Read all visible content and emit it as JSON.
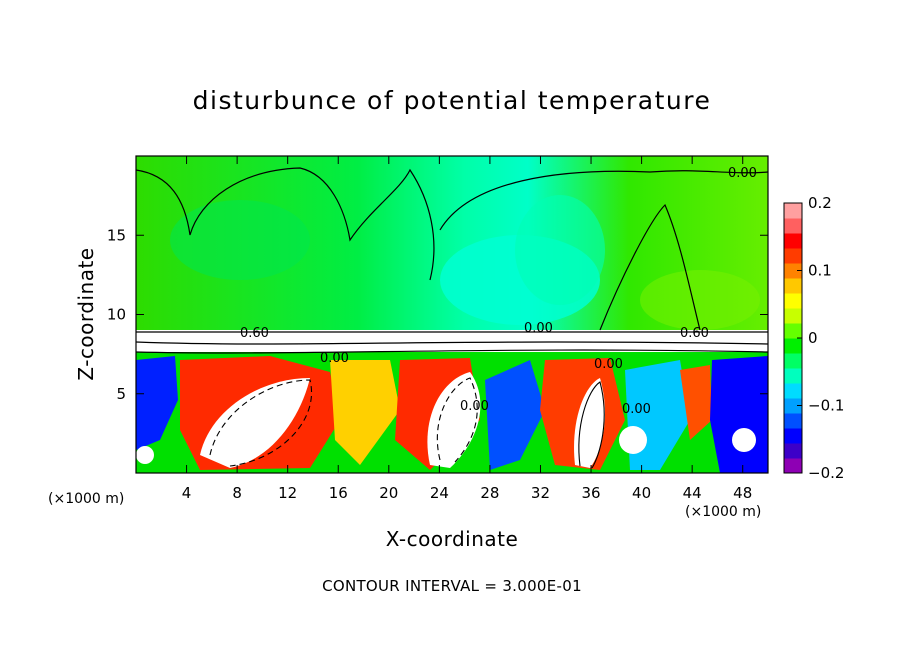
{
  "chart_data": {
    "type": "heatmap",
    "title": "disturbunce of potential temperature",
    "xlabel": "X-coordinate",
    "ylabel": "Z-coordinate",
    "x_unit": "(×1000 m)",
    "z_unit": "(×1000 m)",
    "xlim": [
      0,
      50
    ],
    "ylim": [
      0,
      20
    ],
    "x_ticks": [
      4,
      8,
      12,
      16,
      20,
      24,
      28,
      32,
      36,
      40,
      44,
      48
    ],
    "y_ticks": [
      5,
      10,
      15
    ],
    "colorbar": {
      "range": [
        -0.2,
        0.2
      ],
      "ticks": [
        0.2,
        0.1,
        0,
        -0.1,
        -0.2
      ],
      "tick_labels": [
        "0.2",
        "0.1",
        "0",
        "−0.1",
        "−0.2"
      ],
      "colors": [
        "#8e00b4",
        "#3c00c8",
        "#0000ff",
        "#0050ff",
        "#00a0ff",
        "#00dcff",
        "#00ffbe",
        "#00ff64",
        "#00f000",
        "#64ff00",
        "#c8ff00",
        "#ffff00",
        "#ffc800",
        "#ff8200",
        "#ff3c00",
        "#ff0000",
        "#ff6060",
        "#ffa0a0"
      ]
    },
    "contour_labels": [
      "0.00",
      "0.60",
      "0.00",
      "0.00",
      "0.60",
      "0.00",
      "0.00",
      "0.00"
    ],
    "contour_interval_text": "CONTOUR INTERVAL = 3.000E-01"
  }
}
